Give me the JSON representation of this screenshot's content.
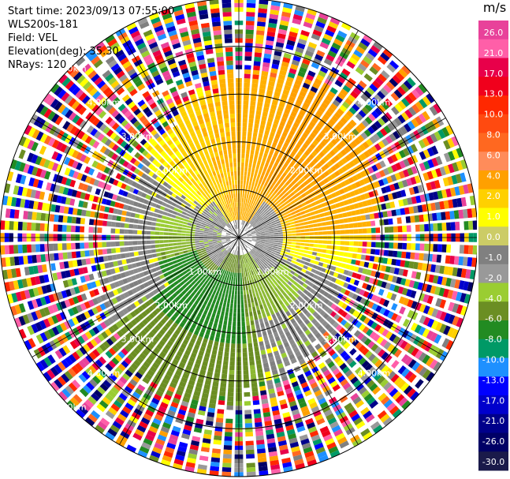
{
  "header": {
    "start_time": "Start time: 2023/09/13 07:55:00",
    "instrument": "WLS200s-181",
    "field": "Field: VEL",
    "elevation": "Elevation(deg): 35.30",
    "nrays": "NRays: 120"
  },
  "colorbar": {
    "unit": "m/s",
    "ticks": [
      "26.0",
      "21.0",
      "17.0",
      "13.0",
      "10.0",
      "8.0",
      "6.0",
      "4.0",
      "2.0",
      "1.0",
      "0.0",
      "-1.0",
      "-2.0",
      "-4.0",
      "-6.0",
      "-8.0",
      "-10.0",
      "-13.0",
      "-17.0",
      "-21.0",
      "-26.0",
      "-30.0"
    ],
    "colors": [
      "#e8429a",
      "#ff5fa8",
      "#e8004a",
      "#f0001c",
      "#ff2800",
      "#ff4a10",
      "#ff6820",
      "#ff8c5a",
      "#ffa000",
      "#ffd000",
      "#ffff00",
      "#cccc66",
      "#808080",
      "#999999",
      "#9acd32",
      "#6b8e23",
      "#228b22",
      "#009966",
      "#1e90ff",
      "#0000ff",
      "#0000cc",
      "#00008b",
      "#000066",
      "#1a1a4a"
    ]
  },
  "chart_data": {
    "type": "ppi",
    "field": "VEL",
    "unit": "m/s",
    "n_rays": 120,
    "range_rings": [
      1.0,
      2.0,
      3.0,
      4.0,
      5.0
    ],
    "max_range_km": 5.0,
    "ring_labels": [
      {
        "text": "1.00km",
        "range_km": 1.0,
        "azimuth_deg": 225
      },
      {
        "text": "1.00km",
        "range_km": 1.0,
        "azimuth_deg": 135
      },
      {
        "text": "2.00km",
        "range_km": 2.0,
        "azimuth_deg": 315
      },
      {
        "text": "2.00km",
        "range_km": 2.0,
        "azimuth_deg": 45
      },
      {
        "text": "2.00km",
        "range_km": 2.0,
        "azimuth_deg": 225
      },
      {
        "text": "2.00km",
        "range_km": 2.0,
        "azimuth_deg": 135
      },
      {
        "text": "3.00km",
        "range_km": 3.0,
        "azimuth_deg": 315
      },
      {
        "text": "3.00km",
        "range_km": 3.0,
        "azimuth_deg": 45
      },
      {
        "text": "3.00km",
        "range_km": 3.0,
        "azimuth_deg": 225
      },
      {
        "text": "3.00km",
        "range_km": 3.0,
        "azimuth_deg": 135
      },
      {
        "text": "4.00km",
        "range_km": 4.0,
        "azimuth_deg": 315
      },
      {
        "text": "4.00km",
        "range_km": 4.0,
        "azimuth_deg": 45
      },
      {
        "text": "4.00km",
        "range_km": 4.0,
        "azimuth_deg": 225
      },
      {
        "text": "4.00km",
        "range_km": 4.0,
        "azimuth_deg": 135
      },
      {
        "text": "5.00km",
        "range_km": 5.0,
        "azimuth_deg": 315
      },
      {
        "text": "5.00km",
        "range_km": 5.0,
        "azimuth_deg": 225
      }
    ],
    "spokes_deg": [
      0,
      30,
      60,
      90,
      120,
      150,
      180,
      210,
      240,
      270,
      300,
      330
    ],
    "vlim": [
      -30.0,
      26.0
    ]
  }
}
